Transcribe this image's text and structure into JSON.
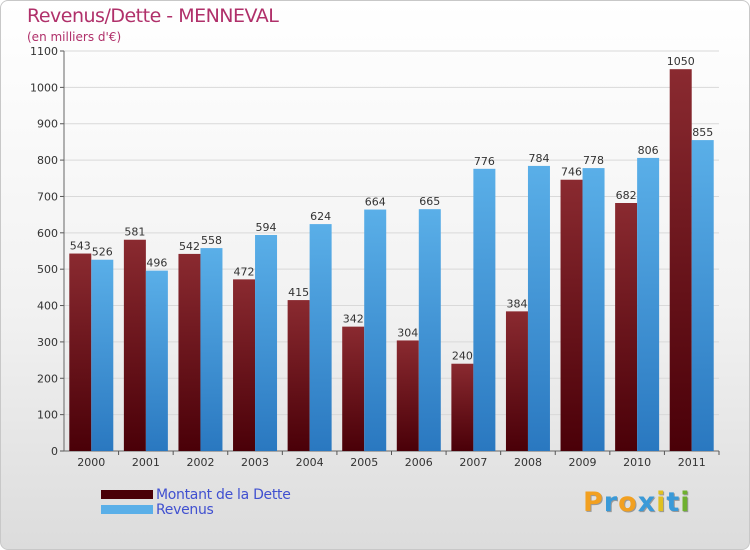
{
  "title": "Revenus/Dette - MENNEVAL",
  "subtitle": "(en milliers d'€)",
  "logo": "Proxiti",
  "colors": {
    "dette_top": "#8a2a30",
    "dette_bottom": "#4a0008",
    "revenus_top": "#5aafe8",
    "revenus_bottom": "#2a78c0",
    "title": "#b0306a",
    "legend_text": "#4050d0"
  },
  "chart_data": {
    "type": "bar",
    "title": "Revenus/Dette - MENNEVAL",
    "subtitle": "(en milliers d'€)",
    "categories": [
      "2000",
      "2001",
      "2002",
      "2003",
      "2004",
      "2005",
      "2006",
      "2007",
      "2008",
      "2009",
      "2010",
      "2011"
    ],
    "series": [
      {
        "name": "Montant de la Dette",
        "values": [
          543,
          581,
          542,
          472,
          415,
          342,
          304,
          240,
          384,
          746,
          682,
          1050
        ]
      },
      {
        "name": "Revenus",
        "values": [
          526,
          496,
          558,
          594,
          624,
          664,
          665,
          776,
          784,
          778,
          806,
          855
        ]
      }
    ],
    "ylim": [
      0,
      1100
    ],
    "yticks": [
      0,
      100,
      200,
      300,
      400,
      500,
      600,
      700,
      800,
      900,
      1000,
      1100
    ],
    "grid": true,
    "legend_position": "bottom-left"
  }
}
